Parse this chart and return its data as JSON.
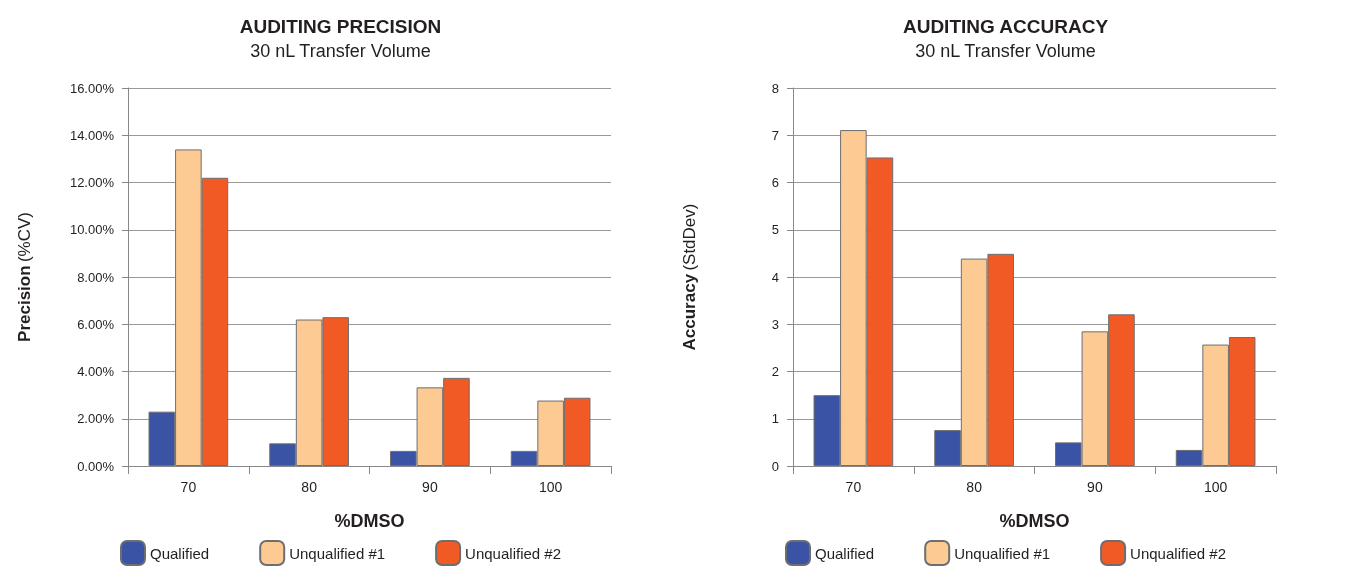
{
  "chart_data": [
    {
      "type": "bar",
      "title": "AUDITING PRECISION",
      "subtitle": "30 nL Transfer Volume",
      "xlabel": "%DMSO",
      "ylabel": "Precision (%CV)",
      "categories": [
        "70",
        "80",
        "90",
        "100"
      ],
      "series": [
        {
          "name": "Qualified",
          "color": "#3a53a4",
          "values": [
            2.3,
            0.96,
            0.64,
            0.64
          ]
        },
        {
          "name": "Unqualified #1",
          "color": "#fdca93",
          "values": [
            13.4,
            6.2,
            3.33,
            2.77
          ]
        },
        {
          "name": "Unqualified #2",
          "color": "#f15a24",
          "values": [
            12.2,
            6.3,
            3.73,
            2.89
          ]
        }
      ],
      "ylim": [
        0,
        16
      ],
      "yticks": [
        {
          "value": 0,
          "label": "0.00%"
        },
        {
          "value": 2,
          "label": "2.00%"
        },
        {
          "value": 4,
          "label": "4.00%"
        },
        {
          "value": 6,
          "label": "6.00%"
        },
        {
          "value": 8,
          "label": "8.00%"
        },
        {
          "value": 10,
          "label": "10.00%"
        },
        {
          "value": 12,
          "label": "12.00%"
        },
        {
          "value": 14,
          "label": "14.00%"
        },
        {
          "value": 16,
          "label": "16.00%"
        }
      ],
      "grid": "y",
      "legend": "bottom"
    },
    {
      "type": "bar",
      "title": "AUDITING ACCURACY",
      "subtitle": "30 nL Transfer Volume",
      "xlabel": "%DMSO",
      "ylabel": "Accuracy (StdDev)",
      "categories": [
        "70",
        "80",
        "90",
        "100"
      ],
      "series": [
        {
          "name": "Qualified",
          "color": "#3a53a4",
          "values": [
            1.5,
            0.76,
            0.5,
            0.34
          ]
        },
        {
          "name": "Unqualified #1",
          "color": "#fdca93",
          "values": [
            7.11,
            4.39,
            2.85,
            2.57
          ]
        },
        {
          "name": "Unqualified #2",
          "color": "#f15a24",
          "values": [
            6.53,
            4.49,
            3.21,
            2.73
          ]
        }
      ],
      "ylim": [
        0,
        8
      ],
      "yticks": [
        0,
        1,
        2,
        3,
        4,
        5,
        6,
        7,
        8
      ],
      "grid": "y",
      "legend": "bottom"
    }
  ]
}
